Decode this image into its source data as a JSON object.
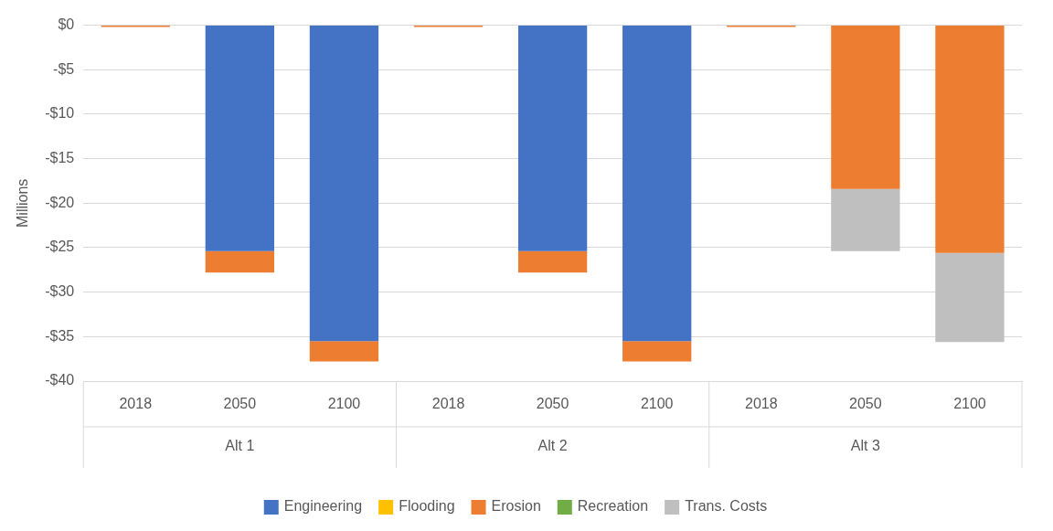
{
  "chart_data": {
    "type": "bar",
    "stacked": true,
    "ylabel": "Millions",
    "categories": [
      "2018",
      "2050",
      "2100",
      "2018",
      "2050",
      "2100",
      "2018",
      "2050",
      "2100"
    ],
    "annotations": [
      "Alt 1",
      "Alt 2",
      "Alt 3"
    ],
    "series": [
      {
        "name": "Engineering",
        "color": "#4472c4",
        "values": [
          0,
          -25.4,
          -35.5,
          0,
          -25.4,
          -35.5,
          0,
          0,
          0
        ]
      },
      {
        "name": "Flooding",
        "color": "#ffc000",
        "values": [
          0,
          0,
          0,
          0,
          0,
          0,
          0,
          0,
          0
        ]
      },
      {
        "name": "Erosion",
        "color": "#ed7d31",
        "values": [
          -0.2,
          -2.4,
          -2.3,
          -0.2,
          -2.4,
          -2.3,
          -0.2,
          -18.4,
          -25.6
        ]
      },
      {
        "name": "Recreation",
        "color": "#70ad47",
        "values": [
          0,
          0,
          0,
          0,
          0,
          0,
          0,
          0,
          0
        ]
      },
      {
        "name": "Trans. Costs",
        "color": "#bfbfbf",
        "values": [
          0,
          0,
          0,
          0,
          0,
          0,
          0,
          -7,
          -10
        ]
      }
    ],
    "ylim": [
      -40,
      0
    ],
    "yticks": [
      {
        "value": 0,
        "label": "$0"
      },
      {
        "value": -5,
        "label": "-$5"
      },
      {
        "value": -10,
        "label": "-$10"
      },
      {
        "value": -15,
        "label": "-$15"
      },
      {
        "value": -20,
        "label": "-$20"
      },
      {
        "value": -25,
        "label": "-$25"
      },
      {
        "value": -30,
        "label": "-$30"
      },
      {
        "value": -35,
        "label": "-$35"
      },
      {
        "value": -40,
        "label": "-$40"
      }
    ],
    "grid": "y",
    "legend": "bottom"
  }
}
